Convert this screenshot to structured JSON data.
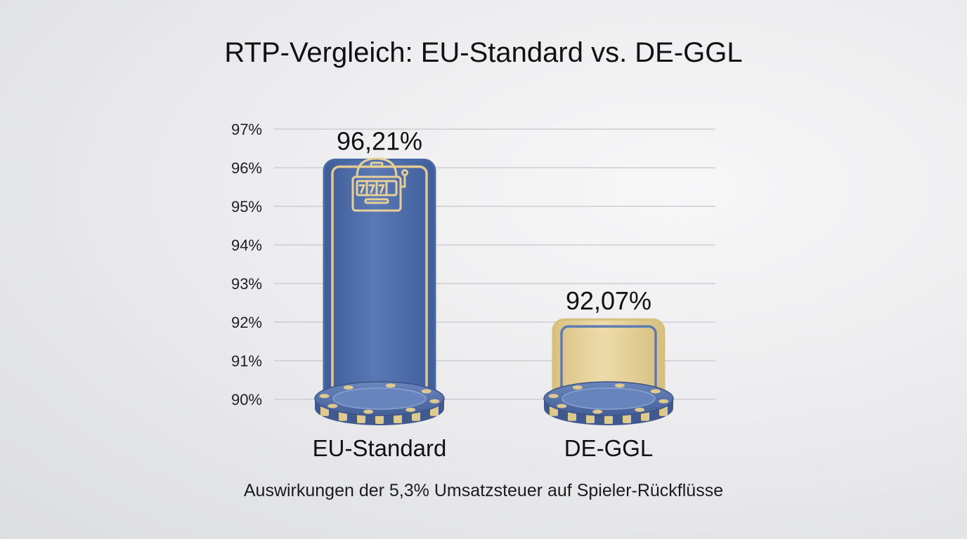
{
  "chart_data": {
    "type": "bar",
    "title": "RTP-Vergleich: EU-Standard vs. DE-GGL",
    "caption": "Auswirkungen der 5,3% Umsatzsteuer auf Spieler-Rückflüsse",
    "categories": [
      "EU-Standard",
      "DE-GGL"
    ],
    "values": [
      96.21,
      92.07
    ],
    "value_labels": [
      "96,21%",
      "92,07%"
    ],
    "ylim": [
      90,
      97
    ],
    "yticks": [
      97,
      96,
      95,
      94,
      93,
      92,
      91,
      90
    ],
    "ytick_labels": [
      "97%",
      "96%",
      "95%",
      "94%",
      "93%",
      "92%",
      "91%",
      "90%"
    ],
    "grid": true,
    "xlabel": "",
    "ylabel": ""
  },
  "colors": {
    "eu_bar": "#4a6aa6",
    "eu_bar_light": "#6483bf",
    "de_bar": "#e3cf98",
    "de_bar_light": "#f1e2b6",
    "chip_blue": "#5470a8",
    "chip_gold": "#e0c98e"
  },
  "icons": {
    "eu_bar_icon": "slot-machine-icon"
  }
}
